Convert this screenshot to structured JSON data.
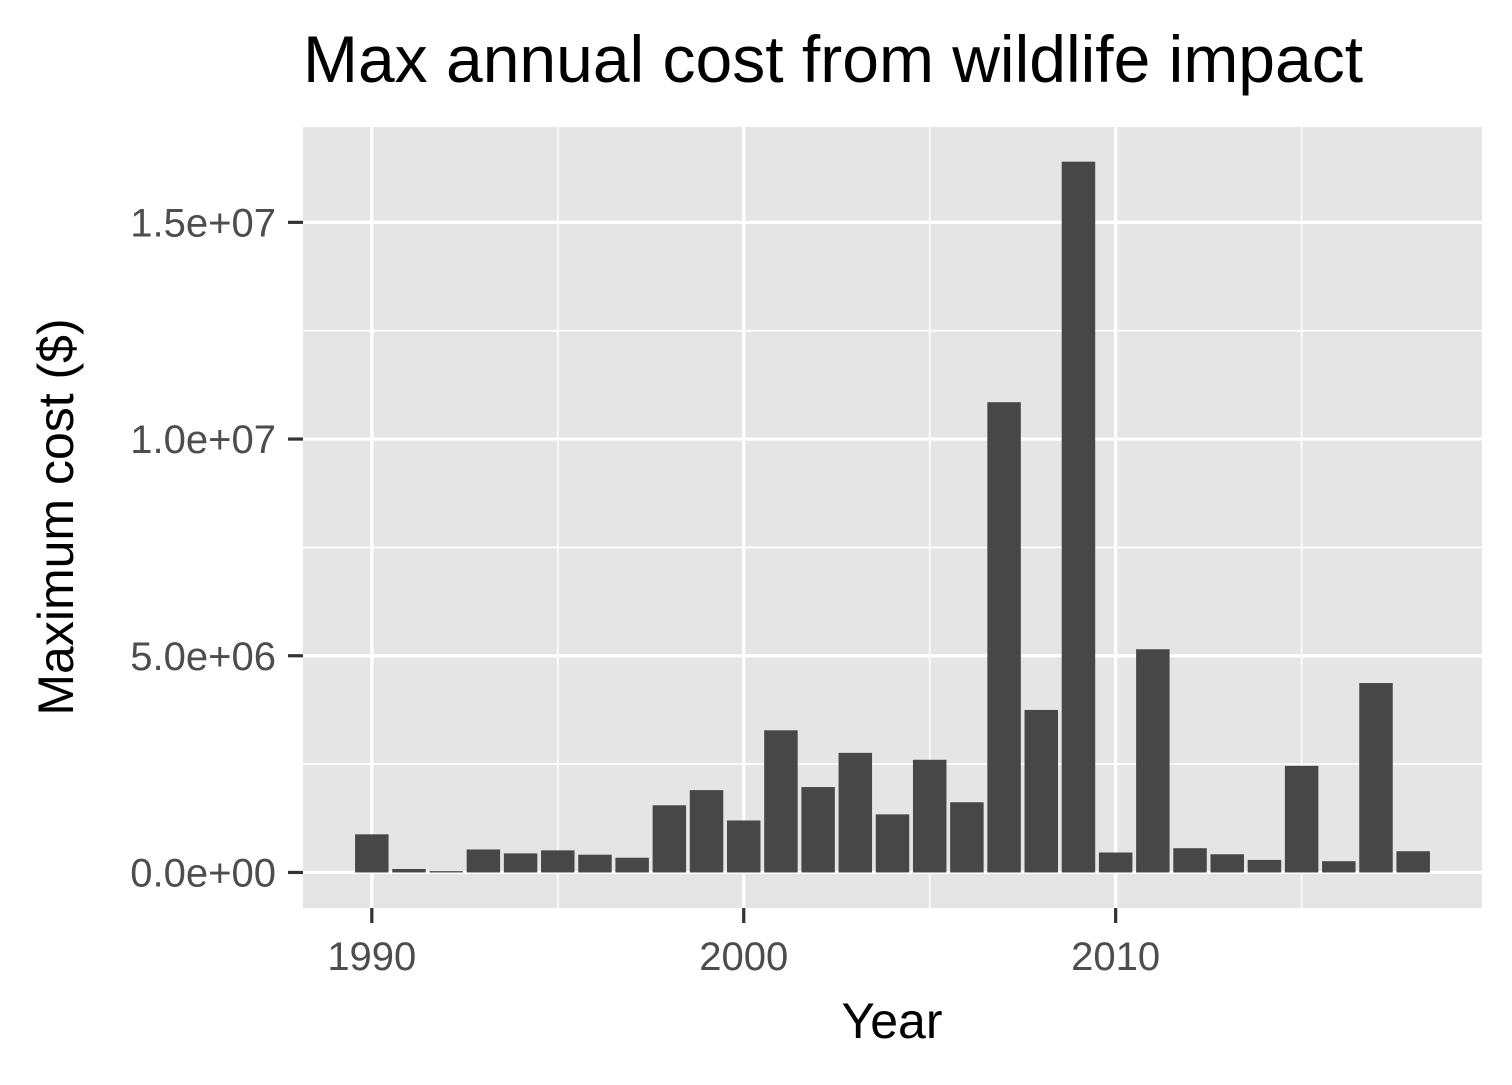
{
  "chart_data": {
    "type": "bar",
    "title": "Max annual cost from wildlife impact",
    "xlabel": "Year",
    "ylabel": "Maximum cost ($)",
    "x": [
      1990,
      1991,
      1992,
      1993,
      1994,
      1995,
      1996,
      1997,
      1998,
      1999,
      2000,
      2001,
      2002,
      2003,
      2004,
      2005,
      2006,
      2007,
      2008,
      2009,
      2010,
      2011,
      2012,
      2013,
      2014,
      2015,
      2016,
      2017,
      2018
    ],
    "values": [
      880000,
      80000,
      30000,
      530000,
      440000,
      510000,
      410000,
      340000,
      1550000,
      1900000,
      1200000,
      3280000,
      1970000,
      2760000,
      1340000,
      2600000,
      1620000,
      10850000,
      3750000,
      16400000,
      460000,
      5150000,
      560000,
      420000,
      290000,
      2460000,
      260000,
      4370000,
      490000
    ],
    "xlim": [
      1988.15,
      2019.85
    ],
    "ylim": [
      -820000,
      17200000
    ],
    "x_ticks": [
      1990,
      2000,
      2010
    ],
    "x_tick_labels": [
      "1990",
      "2000",
      "2010"
    ],
    "y_ticks": [
      0,
      5000000,
      10000000,
      15000000
    ],
    "y_tick_labels": [
      "0.0e+00",
      "5.0e+06",
      "1.0e+07",
      "1.5e+07"
    ],
    "grid": true,
    "colors": {
      "bar": "#474747",
      "panel": "#e5e5e5",
      "grid": "#ffffff",
      "axis_text": "#4d4d4d",
      "tick": "#333333",
      "title": "#000000"
    }
  }
}
